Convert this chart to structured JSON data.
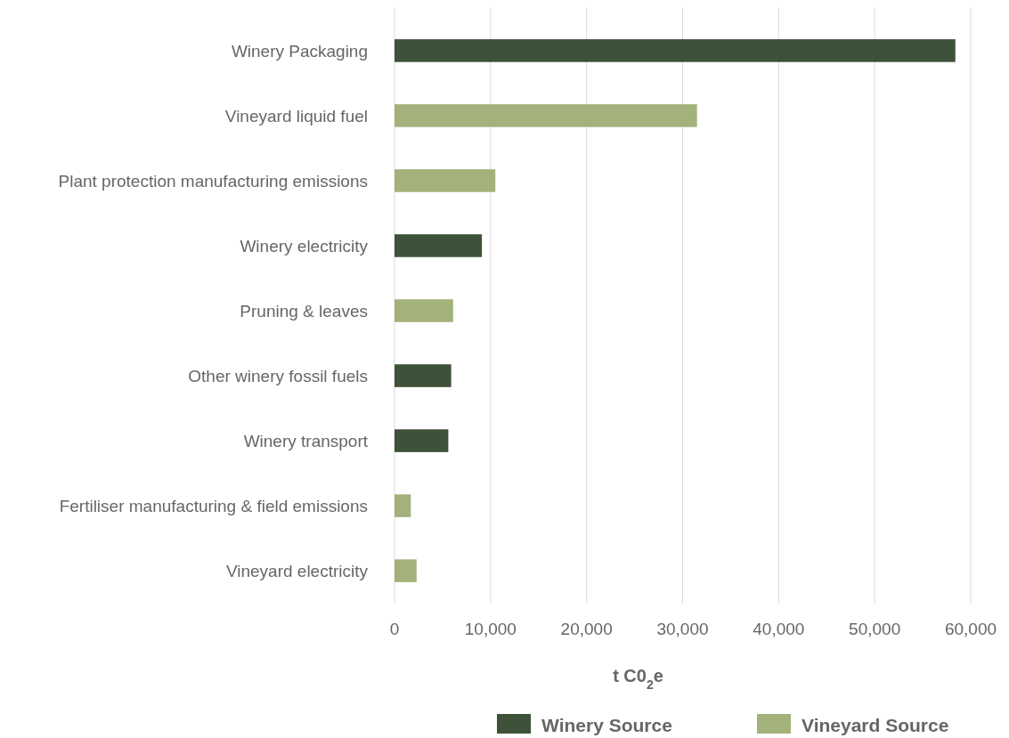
{
  "chart_data": {
    "type": "bar",
    "orientation": "horizontal",
    "categories": [
      "Winery Packaging",
      "Vineyard liquid fuel",
      "Plant protection manufacturing emissions",
      "Winery electricity",
      "Pruning & leaves",
      "Other winery fossil fuels",
      "Winery transport",
      "Fertiliser manufacturing & field emissions",
      "Vineyard electricity"
    ],
    "series": [
      {
        "name": "Winery Source",
        "color": "#3e5139",
        "values": [
          58400,
          null,
          null,
          9100,
          null,
          5900,
          5600,
          null,
          null
        ]
      },
      {
        "name": "Vineyard Source",
        "color": "#a3b27a",
        "values": [
          null,
          31500,
          10500,
          null,
          6100,
          null,
          null,
          1700,
          2300
        ]
      }
    ],
    "xlabel": "t C0$_{2}$e",
    "xlim": [
      0,
      60000
    ],
    "xticks": [
      {
        "value": 0,
        "label": "0"
      },
      {
        "value": 10000,
        "label": "10,000"
      },
      {
        "value": 20000,
        "label": "20,000"
      },
      {
        "value": 30000,
        "label": "30,000"
      },
      {
        "value": 40000,
        "label": "40,000"
      },
      {
        "value": 50000,
        "label": "50,000"
      },
      {
        "value": 60000,
        "label": "60,000"
      }
    ],
    "grid": "x",
    "legend": "bottom"
  }
}
